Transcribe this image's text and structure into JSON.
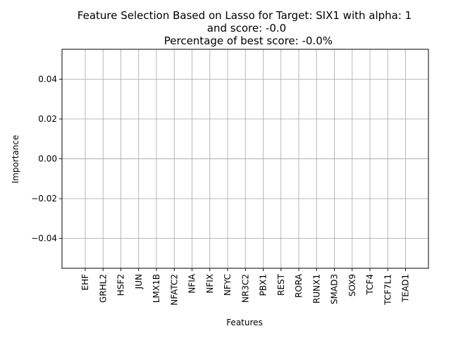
{
  "chart_data": {
    "type": "bar",
    "title_lines": [
      "Feature Selection Based on Lasso for Target: SIX1 with alpha: 1",
      "and score: -0.0",
      " Percentage of best score: -0.0%"
    ],
    "xlabel": "Features",
    "ylabel": "Importance",
    "categories": [
      "EHF",
      "GRHL2",
      "HSF2",
      "JUN",
      "LMX1B",
      "NFATC2",
      "NFIA",
      "NFIX",
      "NFYC",
      "NR3C2",
      "PBX1",
      "REST",
      "RORA",
      "RUNX1",
      "SMAD3",
      "SOX9",
      "TCF4",
      "TCF7L1",
      "TEAD1"
    ],
    "values": [
      0,
      0,
      0,
      0,
      0,
      0,
      0,
      0,
      0,
      0,
      0,
      0,
      0,
      0,
      0,
      0,
      0,
      0,
      0
    ],
    "ylim": [
      -0.055,
      0.055
    ],
    "yticks": [
      -0.04,
      -0.02,
      0.0,
      0.02,
      0.04
    ],
    "ytick_labels": [
      "−0.04",
      "−0.02",
      "0.00",
      "0.02",
      "0.04"
    ],
    "grid": true
  }
}
